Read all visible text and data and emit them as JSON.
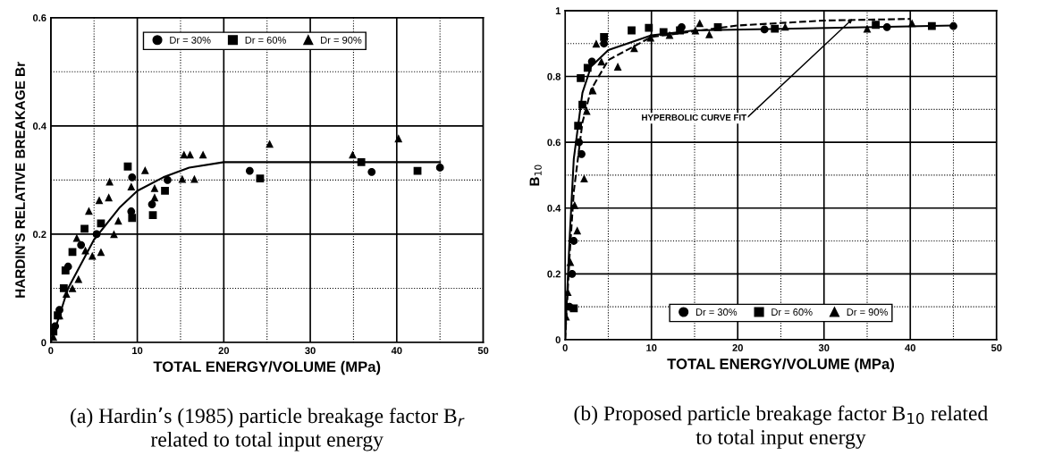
{
  "chart_data": [
    {
      "type": "scatter",
      "xlabel": "TOTAL ENERGY/VOLUME (MPa)",
      "ylabel": "HARDIN'S RELATIVE BREAKAGE Br",
      "xlim": [
        0,
        50
      ],
      "xticks": [
        0,
        {
          "value": 5,
          "label": null
        },
        10,
        {
          "value": 15,
          "label": null
        },
        20,
        {
          "value": 25,
          "label": null
        },
        30,
        {
          "value": 35,
          "label": null
        },
        40,
        {
          "value": 45,
          "label": null
        },
        50
      ],
      "ylim": [
        0,
        0.6
      ],
      "yticks": [
        0,
        {
          "value": 0.1,
          "label": null
        },
        0.2,
        {
          "value": 0.3,
          "label": null
        },
        0.4,
        {
          "value": 0.5,
          "label": null
        },
        0.6
      ],
      "grid": true,
      "legend": "top right",
      "series": [
        {
          "name": "Dr = 30%",
          "color": "#000000",
          "marker": "circle",
          "x": [
            0.5,
            1.0,
            2.0,
            3.5,
            5.3,
            9.3,
            9.4,
            11.7,
            13.5,
            23.0,
            37.1,
            45.0
          ],
          "values": [
            0.03,
            0.06,
            0.14,
            0.18,
            0.2,
            0.242,
            0.305,
            0.255,
            0.3,
            0.317,
            0.315,
            0.323
          ]
        },
        {
          "name": "Dr = 60%",
          "color": "#000000",
          "marker": "square",
          "x": [
            0.3,
            0.8,
            1.5,
            1.7,
            2.5,
            3.9,
            5.8,
            8.9,
            9.4,
            11.8,
            13.2,
            24.2,
            35.9,
            42.4
          ],
          "values": [
            0.02,
            0.05,
            0.1,
            0.133,
            0.167,
            0.21,
            0.22,
            0.325,
            0.23,
            0.235,
            0.28,
            0.303,
            0.333,
            0.317
          ]
        },
        {
          "name": "Dr = 90%",
          "color": "#000000",
          "marker": "triangle",
          "x": [
            0.3,
            1.0,
            1.8,
            2.5,
            3.0,
            3.2,
            4.0,
            4.4,
            4.8,
            5.6,
            5.8,
            6.7,
            6.8,
            7.3,
            7.8,
            9.3,
            10.9,
            12.0,
            12.0,
            15.2,
            15.4,
            16.1,
            16.6,
            17.6,
            25.3,
            34.9,
            40.2
          ],
          "values": [
            0.01,
            0.05,
            0.09,
            0.1,
            0.193,
            0.117,
            0.17,
            0.243,
            0.16,
            0.263,
            0.167,
            0.268,
            0.297,
            0.2,
            0.225,
            0.288,
            0.318,
            0.285,
            0.268,
            0.302,
            0.347,
            0.347,
            0.302,
            0.347,
            0.367,
            0.347,
            0.377
          ]
        },
        {
          "type": "line",
          "color": "#000000",
          "marker": "none",
          "line_style": "solid",
          "x": [
            0,
            2,
            5,
            8,
            10,
            13,
            16,
            20,
            45
          ],
          "values": [
            0,
            0.1,
            0.19,
            0.25,
            0.28,
            0.305,
            0.323,
            0.333,
            0.333
          ]
        }
      ],
      "annotations": [
        "(a) Hardin’s (1985) particle breakage factor B$_{r}$ related to total input energy"
      ]
    },
    {
      "type": "scatter",
      "xlabel": "TOTAL ENERGY/VOLUME (MPa)",
      "ylabel": "B$_{10}$",
      "xlim": [
        0,
        50
      ],
      "xticks": [
        0,
        {
          "value": 5,
          "label": null
        },
        10,
        {
          "value": 15,
          "label": null
        },
        20,
        {
          "value": 25,
          "label": null
        },
        30,
        {
          "value": 35,
          "label": null
        },
        40,
        {
          "value": 45,
          "label": null
        },
        50
      ],
      "ylim": [
        0,
        1
      ],
      "yticks": [
        0,
        {
          "value": 0.1,
          "label": null
        },
        0.2,
        {
          "value": 0.3,
          "label": null
        },
        0.4,
        {
          "value": 0.5,
          "label": null
        },
        0.6,
        {
          "value": 0.7,
          "label": null
        },
        0.8,
        {
          "value": 0.9,
          "label": null
        },
        1
      ],
      "grid": true,
      "legend": "bottom",
      "series": [
        {
          "name": "Dr = 30%",
          "color": "#000000",
          "marker": "circle",
          "x": [
            0.5,
            0.8,
            1.0,
            1.6,
            1.9,
            3.1,
            4.5,
            13.5,
            23.1,
            37.3,
            45.0
          ],
          "values": [
            0.1,
            0.2,
            0.3,
            0.6,
            0.564,
            0.845,
            0.9,
            0.95,
            0.943,
            0.95,
            0.953
          ]
        },
        {
          "name": "Dr = 60%",
          "color": "#000000",
          "marker": "square",
          "x": [
            1.0,
            1.5,
            1.8,
            2.0,
            2.6,
            4.5,
            7.7,
            9.7,
            11.4,
            13.3,
            17.7,
            24.3,
            36.0,
            42.5
          ],
          "values": [
            0.095,
            0.65,
            0.795,
            0.714,
            0.826,
            0.92,
            0.94,
            0.948,
            0.935,
            0.94,
            0.95,
            0.945,
            0.957,
            0.953
          ]
        },
        {
          "name": "Dr = 90%",
          "color": "#000000",
          "marker": "triangle",
          "x": [
            0.1,
            0.3,
            0.6,
            1.1,
            1.4,
            2.2,
            2.5,
            3.2,
            3.6,
            4.2,
            6.1,
            8.0,
            9.9,
            12.1,
            15.1,
            15.6,
            16.7,
            25.5,
            35.0,
            40.2
          ],
          "values": [
            0.07,
            0.145,
            0.236,
            0.409,
            0.332,
            0.49,
            0.695,
            0.758,
            0.9,
            0.845,
            0.83,
            0.886,
            0.918,
            0.926,
            0.94,
            0.962,
            0.928,
            0.951,
            0.945,
            0.962
          ]
        },
        {
          "type": "line",
          "color": "#000000",
          "marker": "none",
          "line_style": "solid",
          "x": [
            0,
            0.5,
            1,
            2,
            3,
            5,
            10,
            15,
            25,
            45
          ],
          "values": [
            0,
            0.3,
            0.55,
            0.75,
            0.83,
            0.88,
            0.925,
            0.94,
            0.945,
            0.955
          ]
        },
        {
          "type": "line",
          "color": "#000000",
          "marker": "none",
          "line_style": "dashed",
          "x": [
            0,
            0.5,
            1,
            2,
            3,
            5,
            10,
            20,
            30,
            40
          ],
          "values": [
            0,
            0.25,
            0.45,
            0.66,
            0.76,
            0.85,
            0.92,
            0.955,
            0.97,
            0.975
          ]
        }
      ],
      "annotations": [
        {
          "text": "HYPERBOLIC CURVE FIT",
          "x": 33.3,
          "y": 0.975
        },
        "(b) Proposed particle breakage factor B$_{10}$ related to total input energy"
      ]
    }
  ]
}
